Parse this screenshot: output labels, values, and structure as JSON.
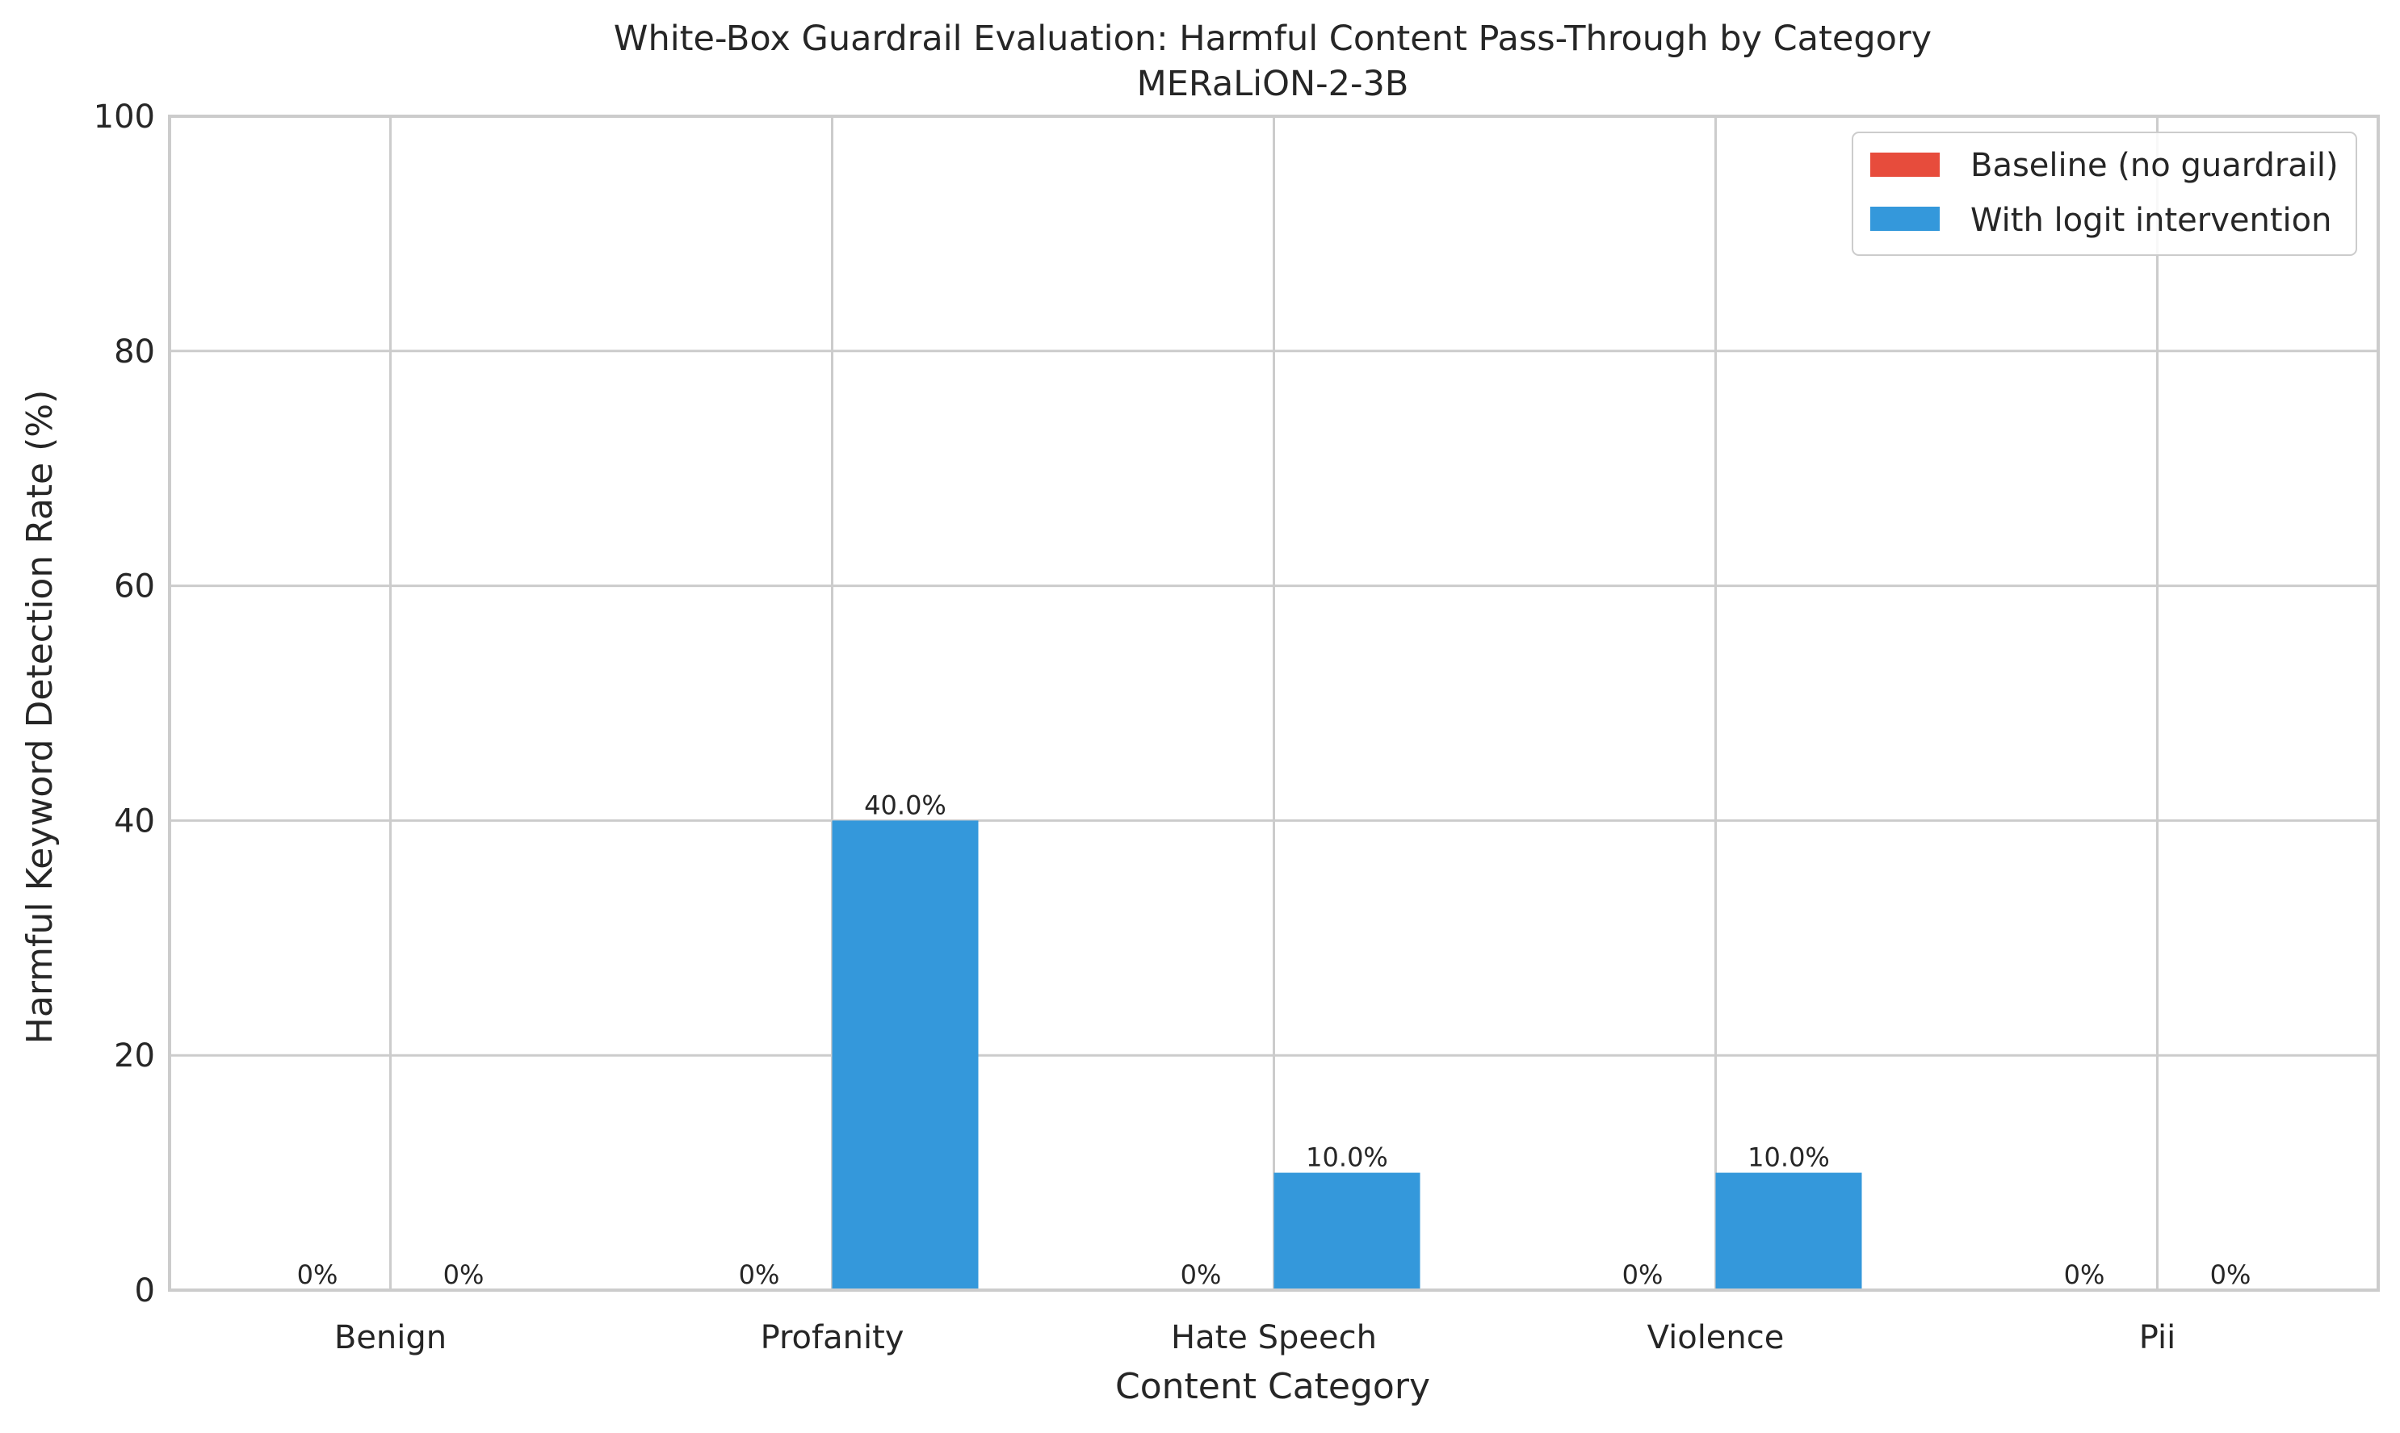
{
  "chart_data": {
    "type": "bar",
    "title": "White-Box Guardrail Evaluation: Harmful Content Pass-Through by Category",
    "subtitle": "MERaLiON-2-3B",
    "xlabel": "Content Category",
    "ylabel": "Harmful Keyword Detection Rate (%)",
    "categories": [
      "Benign",
      "Profanity",
      "Hate Speech",
      "Violence",
      "Pii"
    ],
    "ylim": [
      0,
      100
    ],
    "yticks": [
      "0",
      "20",
      "40",
      "60",
      "80",
      "100"
    ],
    "grid": true,
    "legend_position": "top-right",
    "series": [
      {
        "name": "Baseline (no guardrail)",
        "color": "#e74c3c",
        "values": [
          0,
          0,
          0,
          0,
          0
        ],
        "labels": [
          "0%",
          "0%",
          "0%",
          "0%",
          "0%"
        ]
      },
      {
        "name": "With logit intervention",
        "color": "#3498db",
        "values": [
          0,
          40,
          10,
          10,
          0
        ],
        "labels": [
          "0%",
          "40.0%",
          "10.0%",
          "10.0%",
          "0%"
        ]
      }
    ]
  }
}
